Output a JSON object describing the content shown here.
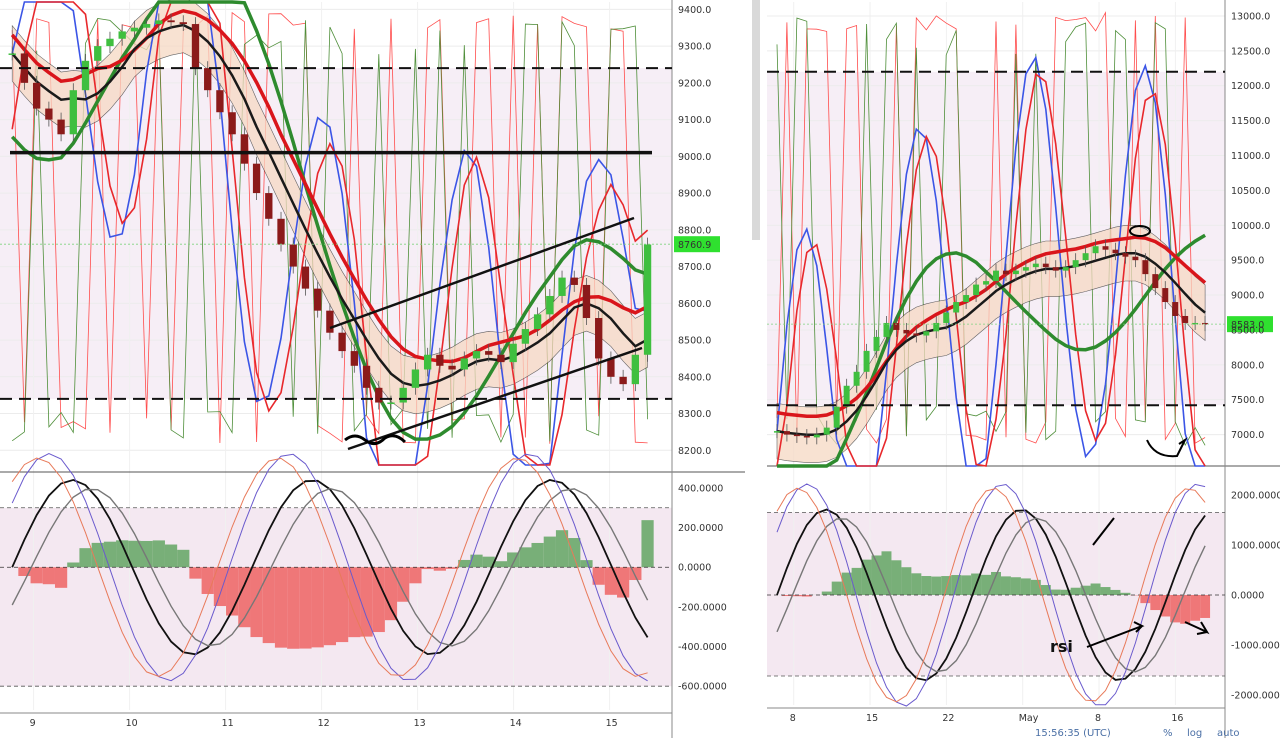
{
  "chart_data": [
    {
      "type": "candlestick",
      "panel": "left",
      "price_axis": {
        "ticks": [
          "9400.0",
          "9300.0",
          "9200.0",
          "9100.0",
          "9000.0",
          "8900.0",
          "8800.0",
          "8700.0",
          "8600.0",
          "8500.0",
          "8400.0",
          "8300.0",
          "8200.0"
        ],
        "ylim": [
          8160,
          9420
        ]
      },
      "last_price_label": "8760.9",
      "horizontal_levels": [
        9240,
        9010,
        8340
      ],
      "osc_axis": {
        "ticks": [
          "400.0000",
          "200.0000",
          "0.0000",
          "-200.0000",
          "-400.0000",
          "-600.0000"
        ],
        "ylim": [
          -720,
          440
        ]
      },
      "osc_levels": [
        300,
        -600
      ],
      "x_ticks": [
        "9",
        "10",
        "11",
        "12",
        "13",
        "14",
        "15"
      ],
      "close": [
        9280,
        9200,
        9130,
        9100,
        9060,
        9180,
        9260,
        9300,
        9320,
        9340,
        9350,
        9360,
        9370,
        9365,
        9360,
        9240,
        9180,
        9120,
        9060,
        8980,
        8900,
        8830,
        8760,
        8700,
        8640,
        8580,
        8520,
        8470,
        8430,
        8370,
        8330,
        8330,
        8370,
        8420,
        8460,
        8430,
        8420,
        8450,
        8470,
        8460,
        8440,
        8490,
        8530,
        8570,
        8620,
        8670,
        8650,
        8560,
        8450,
        8400,
        8380,
        8460,
        8760
      ]
    },
    {
      "type": "candlestick",
      "panel": "right",
      "price_axis": {
        "ticks": [
          "13000.0",
          "12500.0",
          "12000.0",
          "11500.0",
          "11000.0",
          "10500.0",
          "10000.0",
          "9500.0",
          "9000.0",
          "8500.0",
          "8000.0",
          "7500.0",
          "7000.0"
        ],
        "ylim": [
          6550,
          13200
        ]
      },
      "last_price_label": "8583.0",
      "horizontal_levels": [
        12200,
        7420
      ],
      "osc_axis": {
        "ticks": [
          "2000.0000",
          "1000.0000",
          "0.0000",
          "-1000.0000",
          "-2000.0000"
        ],
        "ylim": [
          -2200,
          2300
        ]
      },
      "osc_levels": [
        1650,
        -1620
      ],
      "x_ticks": [
        "8",
        "15",
        "22",
        "May",
        "8",
        "16"
      ],
      "annotation": "rsi",
      "status": [
        "15:56:35 (UTC)",
        "%",
        "log",
        "auto"
      ],
      "close": [
        7050,
        7000,
        6980,
        6960,
        7000,
        7100,
        7400,
        7700,
        7900,
        8200,
        8400,
        8600,
        8500,
        8450,
        8420,
        8480,
        8600,
        8750,
        8900,
        9000,
        9150,
        9200,
        9350,
        9300,
        9350,
        9400,
        9450,
        9400,
        9350,
        9400,
        9500,
        9600,
        9700,
        9650,
        9600,
        9550,
        9500,
        9300,
        9100,
        8900,
        8700,
        8600,
        8600,
        8583
      ]
    }
  ]
}
